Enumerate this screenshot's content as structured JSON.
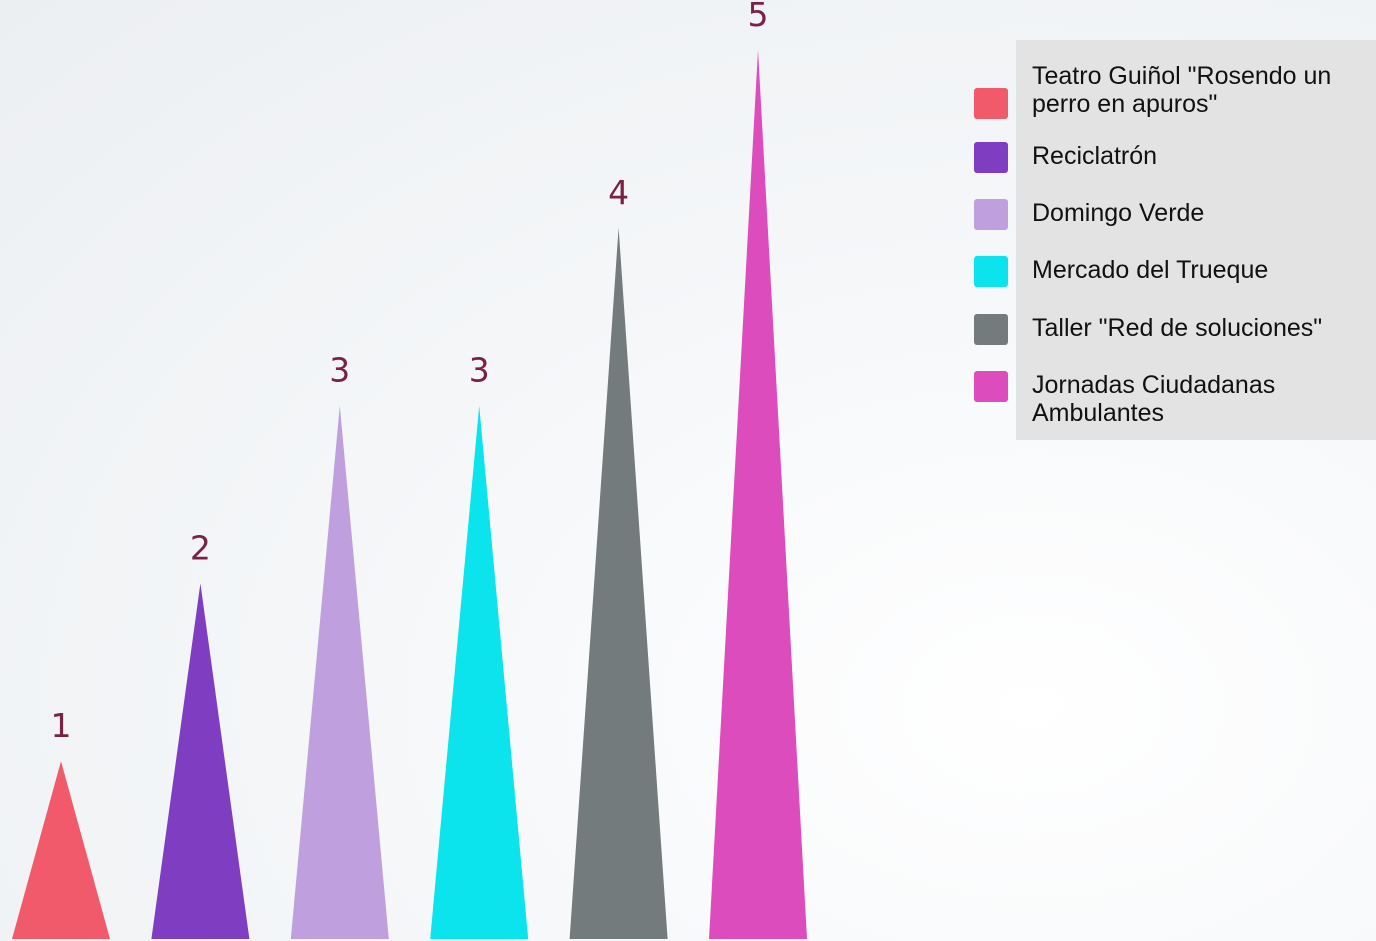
{
  "chart_data": {
    "type": "bar",
    "categories": [
      "Teatro Guiñol \"Rosendo un perro en apuros\"",
      "Reciclatrón",
      "Domingo Verde",
      "Mercado del Trueque",
      "Taller \"Red de soluciones\"",
      "Jornadas Ciudadanas Ambulantes"
    ],
    "values": [
      1,
      2,
      3,
      3,
      4,
      5
    ],
    "value_labels": [
      "1",
      "2",
      "3",
      "3",
      "4",
      "5"
    ],
    "colors": [
      "#f15a6b",
      "#7f3dc1",
      "#bf9fdd",
      "#0ce4ed",
      "#737b7d",
      "#dd4cbc"
    ],
    "ylim": [
      0,
      5
    ],
    "bar_shape": "triangle",
    "grid": false,
    "legend_position": "top-right",
    "title": "",
    "xlabel": "",
    "ylabel": ""
  }
}
